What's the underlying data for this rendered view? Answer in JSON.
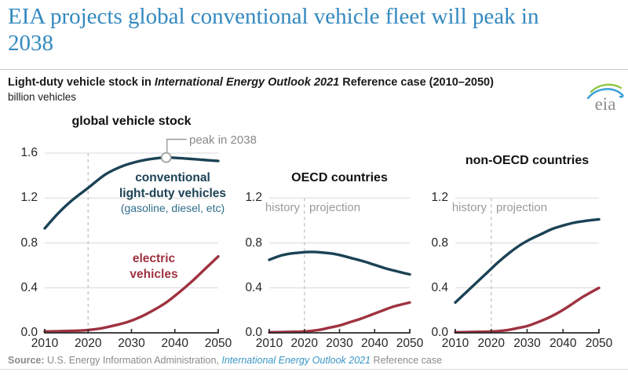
{
  "header": {
    "title_line1": "EIA projects global conventional vehicle fleet will peak in",
    "title_line2": "2038",
    "title_color": "#3389c0"
  },
  "subtitle": {
    "prefix": "Light-duty vehicle stock in ",
    "italic": "International Energy Outlook 2021",
    "suffix": " Reference case (2010–2050)",
    "units": "billion vehicles"
  },
  "logo": {
    "text": "eia",
    "text_color": "#8f8f8f",
    "arc_green": "#8dc63f",
    "arc_blue": "#3aa0d8"
  },
  "colors": {
    "conventional": "#1b4255",
    "electric": "#9f3240",
    "grid": "#d9d9d9",
    "dashed": "#c2c2c2",
    "axis": "#2b2b2b",
    "annotation": "#9a9a9a"
  },
  "chart_data": [
    {
      "type": "line",
      "title": "global vehicle stock",
      "xlim": [
        2010,
        2050
      ],
      "ylim": [
        0,
        1.6
      ],
      "xticks": [
        2010,
        2020,
        2030,
        2040,
        2050
      ],
      "yticks": [
        0,
        0.4,
        0.8,
        1.2,
        1.6
      ],
      "ytick_labels": [
        "0.0",
        "0.4",
        "0.8",
        "1.2",
        "1.6"
      ],
      "dashed_year": 2020,
      "grid": true,
      "series": [
        {
          "name": "conventional light-duty vehicles (gasoline, diesel, etc)",
          "color_key": "conventional",
          "x": [
            2010,
            2013,
            2016,
            2020,
            2024,
            2028,
            2032,
            2035,
            2038,
            2041,
            2044,
            2047,
            2050
          ],
          "y": [
            0.93,
            1.06,
            1.17,
            1.29,
            1.41,
            1.485,
            1.53,
            1.55,
            1.56,
            1.555,
            1.547,
            1.538,
            1.53
          ]
        },
        {
          "name": "electric vehicles",
          "color_key": "electric",
          "x": [
            2010,
            2014,
            2018,
            2020,
            2023,
            2026,
            2029,
            2032,
            2035,
            2038,
            2041,
            2044,
            2047,
            2050
          ],
          "y": [
            0.012,
            0.015,
            0.02,
            0.025,
            0.04,
            0.065,
            0.095,
            0.14,
            0.2,
            0.27,
            0.36,
            0.46,
            0.57,
            0.68
          ]
        }
      ],
      "annotation": {
        "text": "peak in 2038",
        "x": 2038,
        "y": 1.56
      },
      "labels": {
        "conv_line1": "conventional",
        "conv_line2": "light-duty vehicles",
        "conv_sub": "(gasoline, diesel, etc)",
        "ev_line1": "electric",
        "ev_line2": "vehicles"
      }
    },
    {
      "type": "line",
      "title": "OECD countries",
      "xlim": [
        2010,
        2050
      ],
      "ylim": [
        0,
        1.2
      ],
      "xticks": [
        2010,
        2020,
        2030,
        2040,
        2050
      ],
      "yticks": [
        0,
        0.4,
        0.8,
        1.2
      ],
      "ytick_labels": [
        "0.0",
        "0.4",
        "0.8",
        "1.2"
      ],
      "dashed_year": 2020,
      "grid": true,
      "series": [
        {
          "name": "conventional light-duty vehicles",
          "color_key": "conventional",
          "x": [
            2010,
            2013,
            2016,
            2019,
            2022,
            2025,
            2028,
            2031,
            2034,
            2037,
            2040,
            2043,
            2046,
            2050
          ],
          "y": [
            0.65,
            0.685,
            0.705,
            0.715,
            0.72,
            0.715,
            0.705,
            0.685,
            0.66,
            0.635,
            0.605,
            0.575,
            0.55,
            0.52
          ]
        },
        {
          "name": "electric vehicles",
          "color_key": "electric",
          "x": [
            2010,
            2015,
            2020,
            2024,
            2027,
            2030,
            2033,
            2036,
            2039,
            2042,
            2045,
            2048,
            2050
          ],
          "y": [
            0.005,
            0.008,
            0.012,
            0.025,
            0.045,
            0.065,
            0.095,
            0.125,
            0.16,
            0.195,
            0.23,
            0.255,
            0.27
          ]
        }
      ],
      "labels": {
        "history": "history",
        "projection": "projection"
      }
    },
    {
      "type": "line",
      "title": "non-OECD countries",
      "xlim": [
        2010,
        2050
      ],
      "ylim": [
        0,
        1.2
      ],
      "xticks": [
        2010,
        2020,
        2030,
        2040,
        2050
      ],
      "yticks": [
        0,
        0.4,
        0.8,
        1.2
      ],
      "ytick_labels": [
        "0.0",
        "0.4",
        "0.8",
        "1.2"
      ],
      "dashed_year": 2020,
      "grid": true,
      "series": [
        {
          "name": "conventional light-duty vehicles",
          "color_key": "conventional",
          "x": [
            2010,
            2013,
            2016,
            2019,
            2022,
            2025,
            2028,
            2031,
            2034,
            2037,
            2040,
            2043,
            2046,
            2050
          ],
          "y": [
            0.27,
            0.36,
            0.45,
            0.54,
            0.63,
            0.71,
            0.78,
            0.835,
            0.88,
            0.925,
            0.955,
            0.98,
            0.995,
            1.01
          ]
        },
        {
          "name": "electric vehicles",
          "color_key": "electric",
          "x": [
            2010,
            2015,
            2020,
            2024,
            2027,
            2030,
            2033,
            2036,
            2039,
            2042,
            2045,
            2048,
            2050
          ],
          "y": [
            0.005,
            0.008,
            0.012,
            0.022,
            0.04,
            0.06,
            0.095,
            0.135,
            0.185,
            0.245,
            0.31,
            0.365,
            0.4
          ]
        }
      ],
      "labels": {
        "history": "history",
        "projection": "projection"
      }
    }
  ],
  "source": {
    "label": "Source: ",
    "text1": "U.S. Energy Information Administration, ",
    "italic": "International Energy Outlook 2021",
    "text2": " Reference case",
    "link_color": "#3a96c6"
  }
}
